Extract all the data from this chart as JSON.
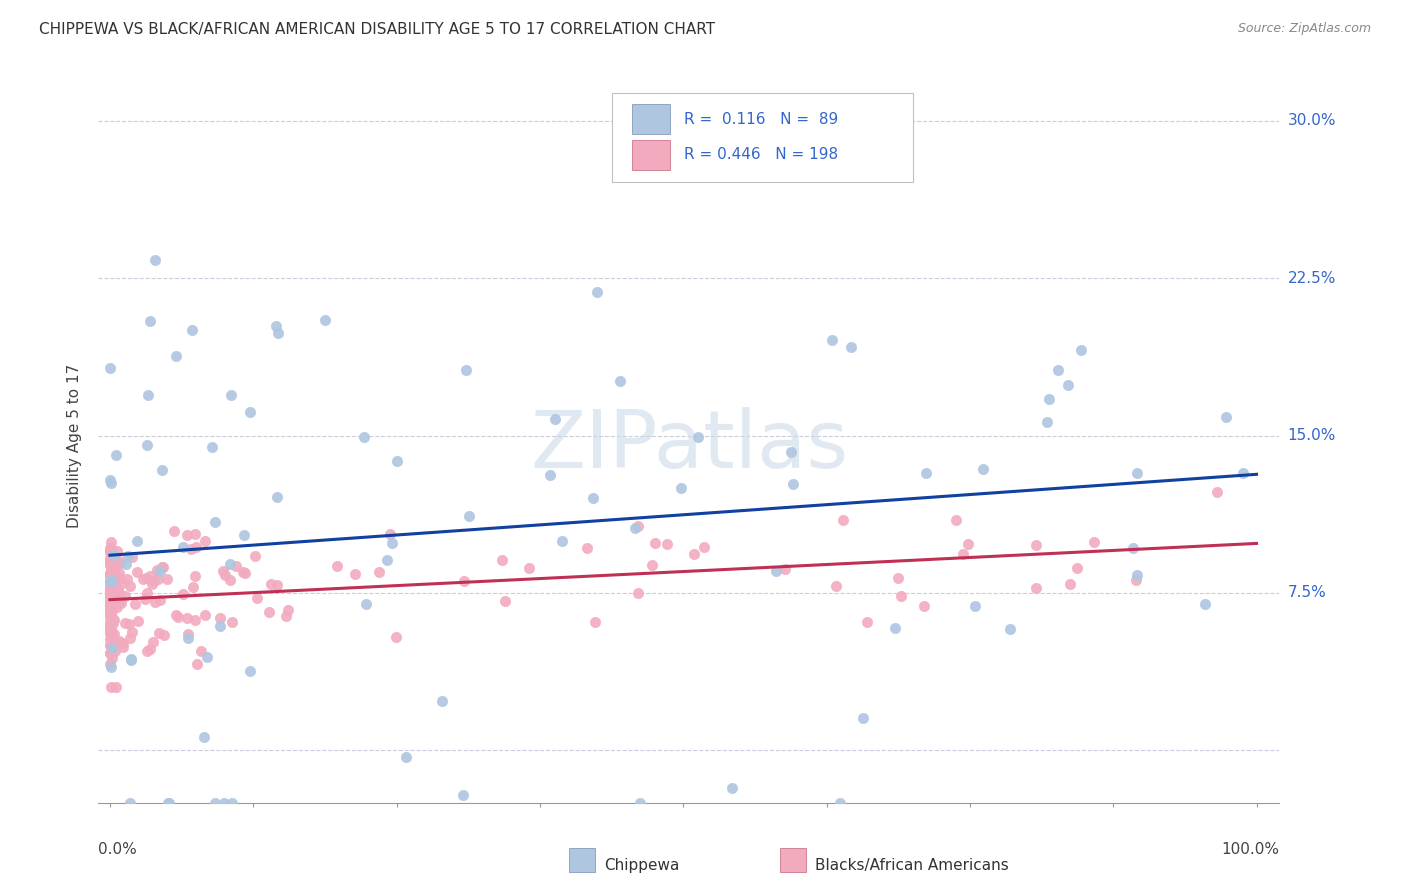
{
  "title": "CHIPPEWA VS BLACK/AFRICAN AMERICAN DISABILITY AGE 5 TO 17 CORRELATION CHART",
  "source": "Source: ZipAtlas.com",
  "ylabel": "Disability Age 5 to 17",
  "yticks": [
    0.0,
    0.075,
    0.15,
    0.225,
    0.3
  ],
  "ytick_labels": [
    "",
    "7.5%",
    "15.0%",
    "22.5%",
    "30.0%"
  ],
  "watermark": "ZIPatlas",
  "chippewa_color": "#aec6e0",
  "black_color": "#f2abbe",
  "chippewa_line_color": "#1040a0",
  "black_line_color": "#c03055",
  "background_color": "#ffffff",
  "legend_chip_r": "0.116",
  "legend_chip_n": "89",
  "legend_black_r": "0.446",
  "legend_black_n": "198",
  "grid_color": "#ccccdd",
  "right_label_color": "#3366cc",
  "title_color": "#333333",
  "source_color": "#888888"
}
